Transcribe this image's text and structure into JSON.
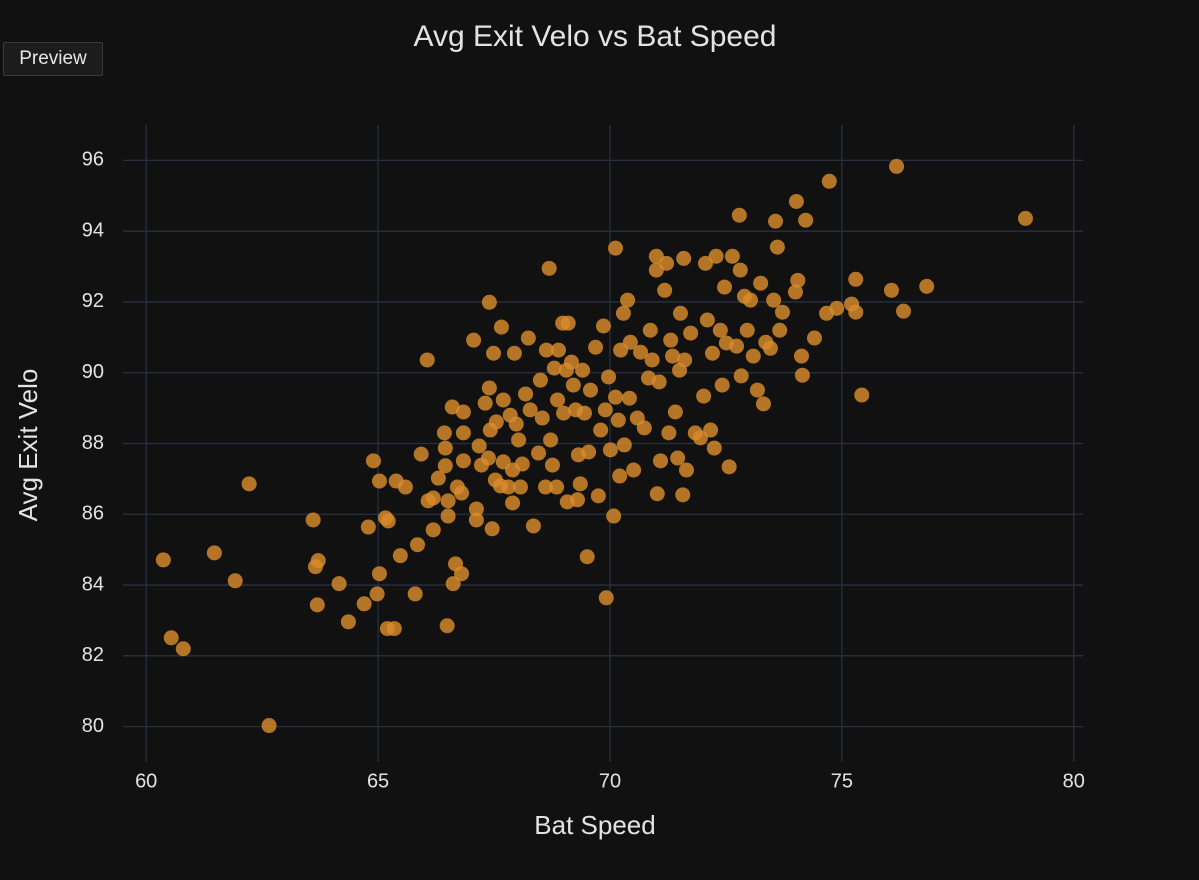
{
  "ui": {
    "preview_button": "Preview"
  },
  "chart_data": {
    "type": "scatter",
    "title": "Avg Exit Velo vs Bat Speed",
    "x_label": "Bat Speed",
    "y_label": "Avg Exit Velo",
    "color": "#d98b2b",
    "grid": true,
    "xlim": [
      59.5,
      80.2
    ],
    "ylim": [
      79.0,
      97.0
    ],
    "xticks": [
      60,
      65,
      70,
      75,
      80
    ],
    "yticks": [
      80,
      82,
      84,
      86,
      88,
      90,
      92,
      94,
      96
    ],
    "x": [
      60.37,
      60.54,
      60.8,
      61.47,
      61.92,
      62.22,
      62.65,
      63.6,
      63.65,
      63.71,
      63.69,
      64.16,
      64.36,
      64.7,
      64.79,
      64.9,
      64.98,
      65.03,
      65.03,
      65.16,
      65.22,
      65.2,
      65.35,
      65.39,
      65.48,
      65.59,
      65.8,
      65.85,
      65.93,
      66.06,
      66.08,
      66.19,
      66.19,
      66.3,
      66.43,
      66.49,
      66.45,
      66.45,
      66.51,
      66.51,
      66.6,
      66.67,
      66.62,
      66.8,
      66.71,
      66.8,
      66.84,
      66.84,
      66.84,
      67.06,
      67.12,
      67.12,
      67.18,
      67.23,
      67.31,
      67.38,
      67.4,
      67.42,
      67.4,
      67.46,
      67.49,
      67.53,
      67.55,
      67.64,
      67.7,
      67.66,
      67.7,
      67.81,
      67.85,
      67.9,
      67.9,
      67.94,
      67.98,
      68.03,
      68.07,
      68.11,
      68.18,
      68.24,
      68.28,
      68.35,
      68.46,
      68.5,
      68.54,
      68.63,
      68.61,
      68.69,
      68.72,
      68.76,
      68.8,
      68.85,
      68.87,
      68.89,
      68.98,
      69.0,
      69.06,
      69.08,
      69.1,
      69.17,
      69.21,
      69.26,
      69.3,
      69.32,
      69.36,
      69.41,
      69.45,
      69.51,
      69.54,
      69.58,
      69.69,
      69.75,
      69.8,
      69.86,
      69.9,
      69.92,
      69.97,
      70.01,
      70.08,
      70.12,
      70.12,
      70.18,
      70.21,
      70.23,
      70.29,
      70.31,
      70.38,
      70.42,
      70.44,
      70.51,
      70.59,
      70.66,
      70.74,
      70.83,
      70.87,
      70.91,
      71.0,
      71.0,
      71.02,
      71.06,
      71.09,
      71.18,
      71.22,
      71.27,
      71.31,
      71.35,
      71.41,
      71.46,
      71.5,
      71.52,
      71.57,
      71.59,
      71.61,
      71.65,
      71.74,
      71.84,
      71.95,
      72.02,
      72.06,
      72.1,
      72.17,
      72.21,
      72.25,
      72.29,
      72.38,
      72.42,
      72.47,
      72.51,
      72.57,
      72.64,
      72.73,
      72.79,
      72.81,
      72.83,
      72.9,
      72.96,
      73.03,
      73.09,
      73.18,
      73.25,
      73.31,
      73.36,
      73.46,
      73.53,
      73.57,
      73.61,
      73.66,
      73.72,
      74.0,
      74.05,
      74.02,
      74.13,
      74.15,
      74.22,
      74.41,
      74.67,
      74.73,
      74.89,
      75.21,
      75.3,
      75.3,
      75.43,
      76.07,
      76.18,
      76.33,
      76.83,
      78.96
    ],
    "values": [
      84.71,
      82.51,
      82.2,
      84.91,
      84.12,
      86.86,
      80.03,
      85.84,
      84.52,
      84.69,
      83.44,
      84.04,
      82.96,
      83.47,
      85.64,
      87.51,
      83.75,
      84.32,
      86.94,
      85.9,
      85.81,
      82.77,
      82.77,
      86.94,
      84.83,
      86.77,
      83.75,
      85.14,
      87.7,
      90.36,
      86.38,
      86.46,
      85.56,
      87.02,
      88.3,
      82.85,
      87.87,
      87.37,
      85.95,
      86.38,
      89.03,
      84.6,
      84.04,
      84.32,
      86.77,
      86.6,
      88.89,
      88.3,
      87.51,
      90.92,
      86.15,
      85.84,
      87.93,
      87.39,
      89.14,
      87.59,
      91.99,
      88.38,
      89.57,
      85.59,
      90.55,
      86.97,
      88.61,
      86.8,
      87.48,
      91.29,
      89.23,
      86.77,
      88.8,
      87.25,
      86.32,
      90.55,
      88.55,
      88.1,
      86.77,
      87.42,
      89.4,
      90.98,
      88.95,
      85.67,
      87.73,
      89.79,
      88.72,
      90.64,
      86.77,
      92.95,
      88.1,
      87.39,
      90.13,
      86.77,
      89.23,
      90.64,
      91.4,
      88.86,
      90.07,
      86.35,
      91.4,
      90.3,
      89.65,
      88.95,
      86.41,
      87.68,
      86.86,
      90.07,
      88.86,
      84.8,
      87.76,
      89.51,
      90.72,
      86.52,
      88.38,
      91.32,
      88.95,
      83.64,
      89.88,
      87.82,
      85.95,
      93.52,
      89.31,
      88.66,
      87.08,
      90.64,
      91.68,
      87.96,
      92.05,
      89.28,
      90.86,
      87.25,
      88.72,
      90.58,
      88.44,
      89.85,
      91.2,
      90.36,
      93.29,
      92.9,
      86.58,
      89.74,
      87.51,
      92.33,
      93.09,
      88.3,
      90.92,
      90.47,
      88.89,
      87.59,
      90.07,
      91.68,
      86.55,
      93.23,
      90.36,
      87.25,
      91.12,
      88.3,
      88.16,
      89.34,
      93.09,
      91.49,
      88.38,
      90.55,
      87.87,
      93.29,
      91.2,
      89.65,
      92.42,
      90.84,
      87.34,
      93.29,
      90.75,
      94.45,
      92.9,
      89.91,
      92.16,
      91.2,
      92.05,
      90.47,
      89.51,
      92.53,
      89.12,
      90.86,
      90.69,
      92.05,
      94.28,
      93.55,
      91.2,
      91.71,
      92.28,
      92.61,
      94.84,
      90.47,
      89.93,
      94.31,
      90.98,
      91.68,
      95.41,
      91.82,
      91.94,
      92.64,
      91.71,
      89.37,
      92.33,
      95.83,
      91.74,
      92.44,
      94.36
    ]
  }
}
